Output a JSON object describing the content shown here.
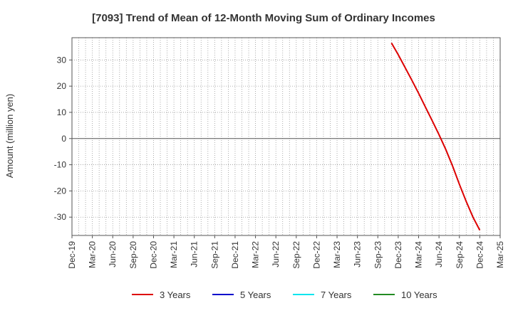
{
  "chart_data": {
    "type": "line",
    "title": "[7093]  Trend of Mean of 12-Month Moving Sum of Ordinary Incomes",
    "ylabel": "Amount (million yen)",
    "xlabel": "",
    "ylim": [
      -37,
      38.5
    ],
    "yticks": [
      30,
      20,
      10,
      0,
      -10,
      -20,
      -30
    ],
    "ytick_labels": [
      "30",
      "20",
      "10",
      "0",
      "-10",
      "-20",
      "-30"
    ],
    "x_tick_labels": [
      "Dec-19",
      "Mar-20",
      "Jun-20",
      "Sep-20",
      "Dec-20",
      "Mar-21",
      "Jun-21",
      "Sep-21",
      "Dec-21",
      "Mar-22",
      "Jun-22",
      "Sep-22",
      "Dec-22",
      "Mar-23",
      "Jun-23",
      "Sep-23",
      "Dec-23",
      "Mar-24",
      "Jun-24",
      "Sep-24",
      "Dec-24",
      "Mar-25"
    ],
    "grid": true,
    "legend_position": "bottom",
    "series": [
      {
        "name": "3 Years",
        "color": "#dd0000",
        "points": [
          {
            "x": "Nov-23",
            "y": 36.5
          },
          {
            "x": "Dec-23",
            "y": 32.0
          },
          {
            "x": "Jan-24",
            "y": 27.2
          },
          {
            "x": "Feb-24",
            "y": 22.3
          },
          {
            "x": "Mar-24",
            "y": 17.3
          },
          {
            "x": "Apr-24",
            "y": 12.0
          },
          {
            "x": "May-24",
            "y": 6.8
          },
          {
            "x": "Jun-24",
            "y": 1.5
          },
          {
            "x": "Jul-24",
            "y": -4.2
          },
          {
            "x": "Aug-24",
            "y": -10.5
          },
          {
            "x": "Sep-24",
            "y": -17.5
          },
          {
            "x": "Oct-24",
            "y": -24.0
          },
          {
            "x": "Nov-24",
            "y": -30.0
          },
          {
            "x": "Dec-24",
            "y": -35.0
          }
        ]
      },
      {
        "name": "5 Years",
        "color": "#0000cc",
        "points": []
      },
      {
        "name": "7 Years",
        "color": "#00e5ee",
        "points": []
      },
      {
        "name": "10 Years",
        "color": "#228b22",
        "points": []
      }
    ]
  }
}
